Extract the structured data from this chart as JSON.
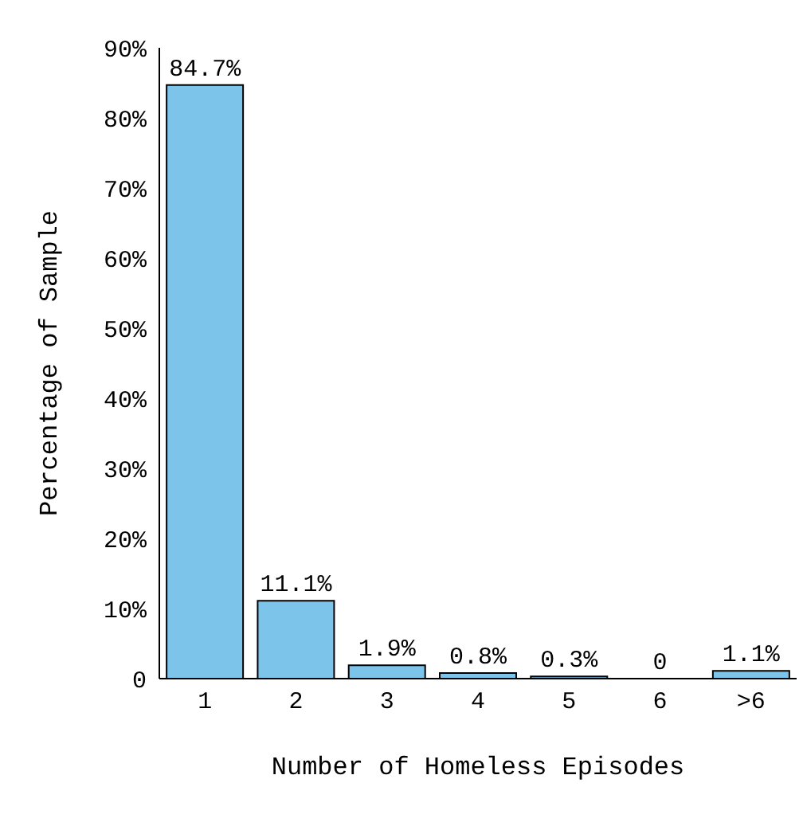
{
  "chart_data": {
    "type": "bar",
    "xlabel": "Number of Homeless Episodes",
    "ylabel": "Percentage of Sample",
    "categories": [
      "1",
      "2",
      "3",
      "4",
      "5",
      "6",
      ">6"
    ],
    "values": [
      84.7,
      11.1,
      1.9,
      0.8,
      0.3,
      0,
      1.1
    ],
    "value_labels": [
      "84.7%",
      "11.1%",
      "1.9%",
      "0.8%",
      "0.3%",
      "0",
      "1.1%"
    ],
    "color": "#7dc4ea",
    "ylim": [
      0,
      90
    ],
    "yticks": [
      {
        "value": 0,
        "label": "0"
      },
      {
        "value": 10,
        "label": "10%"
      },
      {
        "value": 20,
        "label": "20%"
      },
      {
        "value": 30,
        "label": "30%"
      },
      {
        "value": 40,
        "label": "40%"
      },
      {
        "value": 50,
        "label": "50%"
      },
      {
        "value": 60,
        "label": "60%"
      },
      {
        "value": 70,
        "label": "70%"
      },
      {
        "value": 80,
        "label": "80%"
      },
      {
        "value": 90,
        "label": "90%"
      }
    ],
    "grid": false,
    "legend": false
  }
}
